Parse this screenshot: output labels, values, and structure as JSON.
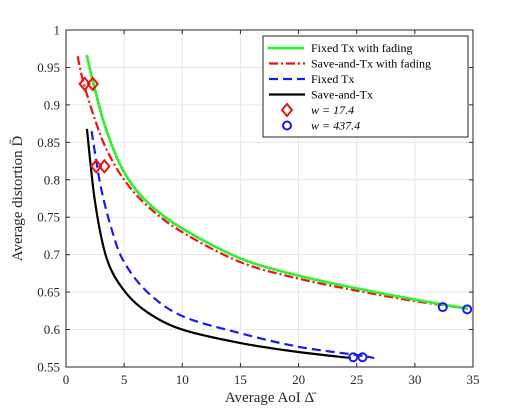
{
  "chart_data": {
    "type": "line",
    "title": "",
    "xlabel": "Average AoI Δ̄",
    "ylabel": "Average distortion D̄",
    "xlim": [
      0,
      35
    ],
    "ylim": [
      0.55,
      1.0
    ],
    "xticks": [
      0,
      5,
      10,
      15,
      20,
      25,
      30,
      35
    ],
    "yticks": [
      0.55,
      0.6,
      0.65,
      0.7,
      0.75,
      0.8,
      0.85,
      0.9,
      0.95,
      1.0
    ],
    "xtick_labels": [
      "0",
      "5",
      "10",
      "15",
      "20",
      "25",
      "30",
      "35"
    ],
    "ytick_labels": [
      "0.55",
      "0.6",
      "0.65",
      "0.7",
      "0.75",
      "0.8",
      "0.85",
      "0.9",
      "0.95",
      "1"
    ],
    "grid": true,
    "legend_position": "top-right",
    "series": [
      {
        "name": "Fixed Tx with fading",
        "style": "dotted",
        "color": "#33ee33",
        "x": [
          1.8,
          2.5,
          3.5,
          5,
          7,
          10,
          15,
          20,
          25,
          30,
          34.5
        ],
        "y": [
          0.965,
          0.92,
          0.865,
          0.81,
          0.77,
          0.735,
          0.695,
          0.672,
          0.655,
          0.64,
          0.628
        ]
      },
      {
        "name": "Save-and-Tx with fading",
        "style": "dashdot",
        "color": "#ee1111",
        "x": [
          1.0,
          1.5,
          2.5,
          3.5,
          5,
          7,
          10,
          15,
          20,
          25,
          30,
          34.5
        ],
        "y": [
          0.965,
          0.93,
          0.88,
          0.84,
          0.8,
          0.765,
          0.73,
          0.69,
          0.668,
          0.652,
          0.638,
          0.628
        ]
      },
      {
        "name": "Fixed Tx",
        "style": "dashed",
        "color": "#1a1aee",
        "x": [
          2.2,
          3,
          4,
          5,
          7,
          10,
          15,
          20,
          25,
          26.5
        ],
        "y": [
          0.865,
          0.79,
          0.73,
          0.69,
          0.65,
          0.618,
          0.595,
          0.577,
          0.566,
          0.562
        ]
      },
      {
        "name": "Save-and-Tx",
        "style": "solid",
        "color": "#000000",
        "x": [
          1.8,
          2.5,
          3.5,
          5,
          7,
          10,
          15,
          20,
          24.5
        ],
        "y": [
          0.868,
          0.77,
          0.695,
          0.652,
          0.623,
          0.6,
          0.582,
          0.57,
          0.562
        ]
      }
    ],
    "markers": [
      {
        "name": "w = 17.4",
        "shape": "diamond",
        "color": "#ee1111",
        "points": [
          [
            1.6,
            0.928
          ],
          [
            2.3,
            0.928
          ],
          [
            2.6,
            0.818
          ],
          [
            3.3,
            0.818
          ]
        ]
      },
      {
        "name": "w = 437.4",
        "shape": "circle",
        "color": "#1a1aee",
        "points": [
          [
            24.7,
            0.563
          ],
          [
            25.5,
            0.563
          ],
          [
            32.4,
            0.63
          ],
          [
            34.5,
            0.627
          ]
        ]
      }
    ]
  }
}
